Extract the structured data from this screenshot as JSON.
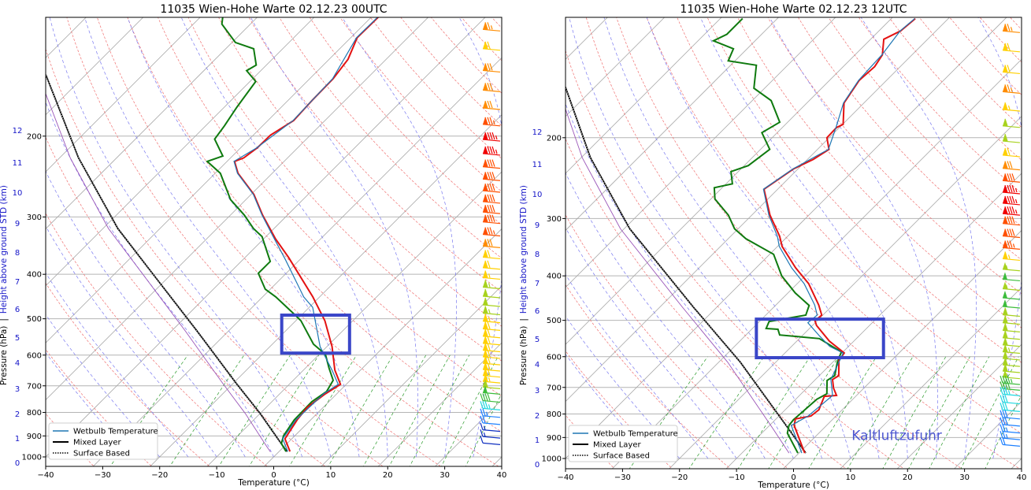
{
  "chart_data": [
    {
      "type": "line",
      "title": "11035 Wien-Hohe Warte 02.12.23 00UTC",
      "xlabel": "Temperature (°C)",
      "ylabel_pressure": "Pressure (hPa)",
      "ylabel_separator": "|",
      "ylabel_height": "Height above ground STD (km)",
      "xlim": [
        -40,
        40
      ],
      "ylim_hpa": [
        1050,
        110
      ],
      "x_ticks": [
        "-40",
        "-30",
        "-20",
        "-10",
        "0",
        "10",
        "20",
        "30",
        "40"
      ],
      "pressure_ticks": [
        "200",
        "300",
        "400",
        "500",
        "600",
        "700",
        "800",
        "900",
        "1000"
      ],
      "height_ticks": [
        {
          "km": "0",
          "p": 1028
        },
        {
          "km": "1",
          "p": 910
        },
        {
          "km": "2",
          "p": 805
        },
        {
          "km": "3",
          "p": 709
        },
        {
          "km": "4",
          "p": 622
        },
        {
          "km": "5",
          "p": 548
        },
        {
          "km": "6",
          "p": 476
        },
        {
          "km": "7",
          "p": 414
        },
        {
          "km": "8",
          "p": 358
        },
        {
          "km": "9",
          "p": 309
        },
        {
          "km": "10",
          "p": 265
        },
        {
          "km": "11",
          "p": 228
        },
        {
          "km": "12",
          "p": 194
        }
      ],
      "legend": {
        "position": "lower-left",
        "entries": [
          "Wetbulb Temperature",
          "Mixed Layer",
          "Surface Based"
        ]
      },
      "colors": {
        "temperature": "#e31212",
        "dewpoint": "#0f7a0f",
        "wetbulb": "#1f77b4",
        "parcel": "#000000",
        "highlight": "#3a46c8"
      },
      "highlight_box": {
        "p_top": 491,
        "p_bottom": 594,
        "t_left_at_bottom": -16.8,
        "t_right_at_bottom": -4.9
      },
      "annotation": null,
      "series": {
        "temperature": [
          [
            973,
            1.9
          ],
          [
            913,
            -1.2
          ],
          [
            830,
            -2.4
          ],
          [
            780,
            -2.8
          ],
          [
            729,
            -2.0
          ],
          [
            695,
            -1.0
          ],
          [
            647,
            -4.5
          ],
          [
            575,
            -9.1
          ],
          [
            505,
            -14.9
          ],
          [
            448,
            -21.2
          ],
          [
            368,
            -32.3
          ],
          [
            335,
            -37.9
          ],
          [
            297,
            -44.4
          ],
          [
            268,
            -49.5
          ],
          [
            241,
            -56.0
          ],
          [
            227,
            -58.7
          ],
          [
            223,
            -57.7
          ],
          [
            212,
            -57.1
          ],
          [
            199,
            -57.0
          ],
          [
            185,
            -55.5
          ],
          [
            167,
            -55.8
          ],
          [
            150,
            -55.9
          ],
          [
            136,
            -56.7
          ],
          [
            122,
            -58.9
          ],
          [
            110,
            -58.8
          ]
        ],
        "dewpoint": [
          [
            973,
            1.2
          ],
          [
            935,
            -1.0
          ],
          [
            899,
            -2.0
          ],
          [
            830,
            -2.9
          ],
          [
            758,
            -3.0
          ],
          [
            720,
            -2.2
          ],
          [
            681,
            -3.0
          ],
          [
            640,
            -5.9
          ],
          [
            598,
            -8.9
          ],
          [
            568,
            -12.8
          ],
          [
            505,
            -19.1
          ],
          [
            491,
            -21.1
          ],
          [
            448,
            -27.7
          ],
          [
            431,
            -30.9
          ],
          [
            398,
            -34.9
          ],
          [
            375,
            -34.9
          ],
          [
            331,
            -40.7
          ],
          [
            318,
            -43.6
          ],
          [
            297,
            -47.6
          ],
          [
            275,
            -52.7
          ],
          [
            241,
            -59.1
          ],
          [
            227,
            -63.5
          ],
          [
            221,
            -61.7
          ],
          [
            203,
            -66.1
          ],
          [
            190,
            -66.7
          ],
          [
            173,
            -67.8
          ],
          [
            152,
            -69.0
          ],
          [
            144,
            -72.5
          ],
          [
            140,
            -71.8
          ],
          [
            129,
            -75.1
          ],
          [
            125,
            -79.4
          ],
          [
            114,
            -85.0
          ],
          [
            110,
            -86.1
          ]
        ],
        "wetbulb": [
          [
            973,
            1.5
          ],
          [
            913,
            -1.6
          ],
          [
            830,
            -2.6
          ],
          [
            729,
            -2.3
          ],
          [
            695,
            -1.4
          ],
          [
            647,
            -5.0
          ],
          [
            575,
            -11.2
          ],
          [
            505,
            -16.6
          ],
          [
            472,
            -19.4
          ],
          [
            448,
            -22.8
          ],
          [
            372,
            -32.5
          ],
          [
            335,
            -38.1
          ],
          [
            297,
            -44.5
          ],
          [
            268,
            -49.6
          ],
          [
            241,
            -56.1
          ],
          [
            227,
            -58.8
          ],
          [
            212,
            -57.2
          ],
          [
            185,
            -55.6
          ],
          [
            150,
            -56.0
          ],
          [
            122,
            -59.0
          ],
          [
            110,
            -58.9
          ]
        ],
        "mixed_layer": [
          [
            975,
            1.5
          ],
          [
            950,
            -0.1
          ],
          [
            804,
            -10.0
          ],
          [
            692,
            -19.4
          ],
          [
            531,
            -35.6
          ],
          [
            411,
            -51.5
          ],
          [
            318,
            -67.4
          ],
          [
            223,
            -86.7
          ],
          [
            147,
            -107.0
          ]
        ]
      },
      "winds": {
        "p": [
          118,
          130,
          145,
          160,
          175,
          190,
          205,
          220,
          235,
          250,
          265,
          280,
          295,
          310,
          330,
          350,
          370,
          390,
          410,
          430,
          450,
          470,
          490,
          510,
          530,
          550,
          570,
          590,
          610,
          630,
          650,
          670,
          690,
          710,
          730,
          760,
          790,
          820,
          850,
          880,
          910,
          940
        ],
        "speed_kt": [
          75,
          70,
          78,
          80,
          80,
          85,
          95,
          95,
          92,
          92,
          92,
          90,
          88,
          88,
          85,
          80,
          72,
          68,
          65,
          63,
          62,
          62,
          63,
          65,
          68,
          70,
          72,
          72,
          72,
          70,
          70,
          68,
          66,
          62,
          50,
          42,
          35,
          25,
          20,
          15,
          15,
          12
        ]
      }
    },
    {
      "type": "line",
      "title": "11035 Wien-Hohe Warte 02.12.23 12UTC",
      "xlabel": "Temperature (°C)",
      "ylabel_pressure": "Pressure (hPa)",
      "ylabel_separator": "|",
      "ylabel_height": "Height above ground STD (km)",
      "xlim": [
        -40,
        40
      ],
      "ylim_hpa": [
        1050,
        110
      ],
      "x_ticks": [
        "-40",
        "-30",
        "-20",
        "-10",
        "0",
        "10",
        "20",
        "30",
        "40"
      ],
      "pressure_ticks": [
        "200",
        "300",
        "400",
        "500",
        "600",
        "700",
        "800",
        "900",
        "1000"
      ],
      "height_ticks": [
        {
          "km": "0",
          "p": 1028
        },
        {
          "km": "1",
          "p": 910
        },
        {
          "km": "2",
          "p": 805
        },
        {
          "km": "3",
          "p": 709
        },
        {
          "km": "4",
          "p": 622
        },
        {
          "km": "5",
          "p": 548
        },
        {
          "km": "6",
          "p": 476
        },
        {
          "km": "7",
          "p": 414
        },
        {
          "km": "8",
          "p": 358
        },
        {
          "km": "9",
          "p": 309
        },
        {
          "km": "10",
          "p": 265
        },
        {
          "km": "11",
          "p": 228
        },
        {
          "km": "12",
          "p": 194
        }
      ],
      "legend": {
        "position": "lower-left",
        "entries": [
          "Wetbulb Temperature",
          "Mixed Layer",
          "Surface Based"
        ]
      },
      "colors": {
        "temperature": "#e31212",
        "dewpoint": "#0f7a0f",
        "wetbulb": "#1f77b4",
        "parcel": "#000000",
        "highlight": "#3a46c8"
      },
      "highlight_box": {
        "p_top": 497,
        "p_bottom": 603,
        "t_left_at_bottom": -24.2,
        "t_right_at_bottom": -1.9
      },
      "annotation": "Kaltluftzufuhr",
      "series": {
        "temperature": [
          [
            973,
            1.0
          ],
          [
            847,
            -5.7
          ],
          [
            820,
            -6.6
          ],
          [
            808,
            -4.4
          ],
          [
            783,
            -4.1
          ],
          [
            732,
            -5.5
          ],
          [
            729,
            -3.5
          ],
          [
            703,
            -5.3
          ],
          [
            673,
            -7.0
          ],
          [
            660,
            -6.6
          ],
          [
            612,
            -9.2
          ],
          [
            589,
            -9.6
          ],
          [
            555,
            -14.3
          ],
          [
            513,
            -19.3
          ],
          [
            501,
            -20.4
          ],
          [
            487,
            -20.2
          ],
          [
            463,
            -22.5
          ],
          [
            416,
            -28.0
          ],
          [
            384,
            -33.1
          ],
          [
            345,
            -39.2
          ],
          [
            328,
            -41.4
          ],
          [
            295,
            -46.8
          ],
          [
            259,
            -52.4
          ],
          [
            234,
            -50.8
          ],
          [
            223,
            -49.0
          ],
          [
            212,
            -48.0
          ],
          [
            200,
            -50.4
          ],
          [
            190,
            -50.5
          ],
          [
            187,
            -49.9
          ],
          [
            168,
            -53.5
          ],
          [
            150,
            -54.8
          ],
          [
            140,
            -54.5
          ],
          [
            132,
            -55.2
          ],
          [
            122,
            -57.7
          ],
          [
            117,
            -56.2
          ],
          [
            110,
            -55.8
          ]
        ],
        "dewpoint": [
          [
            973,
            -0.2
          ],
          [
            881,
            -5.5
          ],
          [
            847,
            -6.6
          ],
          [
            824,
            -6.8
          ],
          [
            743,
            -6.3
          ],
          [
            723,
            -5.5
          ],
          [
            676,
            -7.8
          ],
          [
            660,
            -7.3
          ],
          [
            617,
            -9.2
          ],
          [
            586,
            -10.3
          ],
          [
            548,
            -16.5
          ],
          [
            538,
            -24.1
          ],
          [
            523,
            -25.4
          ],
          [
            521,
            -27.6
          ],
          [
            503,
            -28.3
          ],
          [
            487,
            -23.0
          ],
          [
            464,
            -24.1
          ],
          [
            436,
            -28.7
          ],
          [
            400,
            -34.1
          ],
          [
            359,
            -39.3
          ],
          [
            332,
            -46.9
          ],
          [
            316,
            -50.6
          ],
          [
            295,
            -54.1
          ],
          [
            272,
            -59.3
          ],
          [
            257,
            -61.4
          ],
          [
            252,
            -58.9
          ],
          [
            237,
            -61.3
          ],
          [
            230,
            -59.3
          ],
          [
            212,
            -58.4
          ],
          [
            195,
            -62.7
          ],
          [
            185,
            -61.4
          ],
          [
            166,
            -66.7
          ],
          [
            156,
            -71.9
          ],
          [
            139,
            -75.5
          ],
          [
            136,
            -81.2
          ],
          [
            128,
            -82.4
          ],
          [
            123,
            -87.3
          ],
          [
            119,
            -86.1
          ],
          [
            110,
            -86.1
          ]
        ],
        "wetbulb": [
          [
            973,
            0.5
          ],
          [
            847,
            -6.2
          ],
          [
            808,
            -4.9
          ],
          [
            729,
            -4.2
          ],
          [
            673,
            -7.3
          ],
          [
            589,
            -9.8
          ],
          [
            570,
            -13.3
          ],
          [
            541,
            -16.9
          ],
          [
            506,
            -21.3
          ],
          [
            487,
            -21.0
          ],
          [
            463,
            -23.2
          ],
          [
            416,
            -28.8
          ],
          [
            384,
            -33.8
          ],
          [
            345,
            -39.7
          ],
          [
            328,
            -41.8
          ],
          [
            295,
            -47.0
          ],
          [
            259,
            -52.5
          ],
          [
            234,
            -50.9
          ],
          [
            212,
            -48.1
          ],
          [
            190,
            -50.6
          ],
          [
            168,
            -53.6
          ],
          [
            150,
            -54.9
          ],
          [
            132,
            -55.3
          ],
          [
            117,
            -56.3
          ],
          [
            110,
            -55.9
          ]
        ],
        "mixed_layer": [
          [
            973,
            1.2
          ],
          [
            857,
            -6.4
          ],
          [
            617,
            -26.2
          ],
          [
            468,
            -44.1
          ],
          [
            316,
            -69.0
          ],
          [
            221,
            -88.4
          ],
          [
            155,
            -105.2
          ]
        ]
      },
      "winds": {
        "p": [
          118,
          130,
          145,
          160,
          175,
          190,
          205,
          220,
          235,
          250,
          265,
          280,
          295,
          310,
          330,
          350,
          370,
          390,
          410,
          430,
          450,
          470,
          490,
          510,
          530,
          550,
          570,
          590,
          610,
          630,
          650,
          670,
          690,
          710,
          730,
          760,
          790,
          820,
          850,
          880,
          910,
          940
        ],
        "speed_kt": [
          75,
          72,
          68,
          75,
          65,
          58,
          62,
          72,
          80,
          90,
          95,
          95,
          95,
          92,
          88,
          85,
          65,
          55,
          52,
          55,
          50,
          52,
          58,
          60,
          62,
          62,
          62,
          64,
          62,
          60,
          58,
          55,
          45,
          40,
          35,
          30,
          30,
          28,
          28,
          26,
          25,
          22
        ]
      }
    }
  ]
}
